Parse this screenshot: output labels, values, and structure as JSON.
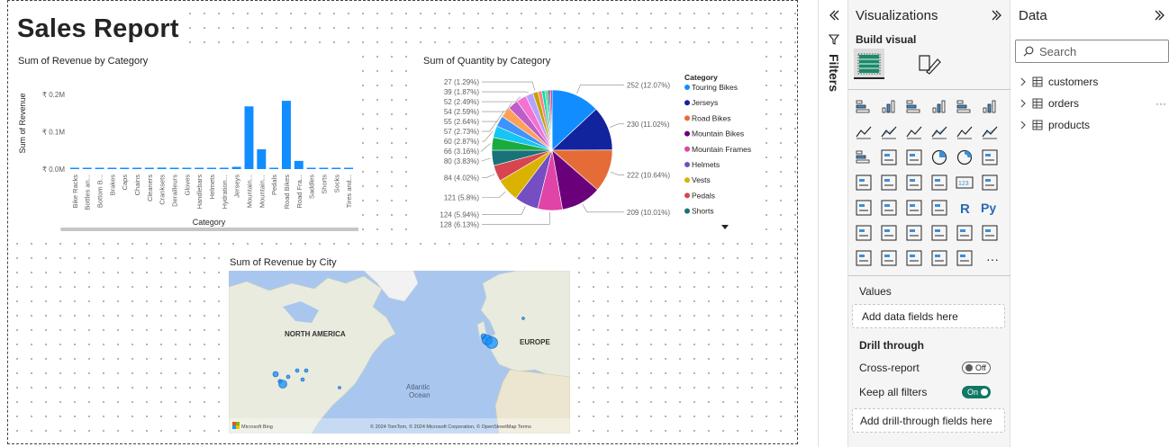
{
  "report": {
    "title": "Sales Report"
  },
  "bar_chart": {
    "title": "Sum of Revenue by Category",
    "ylabel": "Sum of Revenue",
    "xlabel": "Category",
    "yticks": [
      "₹ 0.2M",
      "₹ 0.1M",
      "₹ 0.0M"
    ],
    "color": "#118DFF"
  },
  "pie_chart": {
    "title": "Sum of Quantity by Category",
    "legend_title": "Category"
  },
  "map": {
    "title": "Sum of Revenue by City",
    "labels": {
      "north_america": "NORTH AMERICA",
      "europe": "EUROPE",
      "ocean": "Atlantic\nOcean",
      "ocean1": "Atlantic",
      "ocean2": "Ocean"
    },
    "attribution": "© 2024 TomTom, © 2024 Microsoft Corporation, © OpenStreetMap  Terms",
    "brand": "Microsoft Bing"
  },
  "filters": {
    "label": "Filters"
  },
  "visualizations": {
    "title": "Visualizations",
    "build_visual": "Build visual",
    "values_label": "Values",
    "values_placeholder": "Add data fields here",
    "drill_through": "Drill through",
    "cross_report": "Cross-report",
    "cross_report_state": "Off",
    "keep_all_filters": "Keep all filters",
    "keep_all_filters_state": "On",
    "drill_placeholder": "Add drill-through fields here",
    "more": "···"
  },
  "data_pane": {
    "title": "Data",
    "search_placeholder": "Search",
    "tables": [
      "customers",
      "orders",
      "products"
    ],
    "more": "···"
  },
  "chart_data": [
    {
      "type": "bar",
      "title": "Sum of Revenue by Category",
      "xlabel": "Category",
      "ylabel": "Sum of Revenue",
      "categories": [
        "Bike Racks",
        "Bottles an...",
        "Bottom B...",
        "Brakes",
        "Caps",
        "Chains",
        "Cleaners",
        "Cranksets",
        "Derailleurs",
        "Gloves",
        "Handlebars",
        "Helmets",
        "Hydration...",
        "Jerseys",
        "Mountain...",
        "Mountain...",
        "Pedals",
        "Road Bikes",
        "Road Fra...",
        "Saddles",
        "Shorts",
        "Socks",
        "Tires and..."
      ],
      "values": [
        0.001,
        0.001,
        0.002,
        0.001,
        0.001,
        0.001,
        0.001,
        0.004,
        0.002,
        0.001,
        0.002,
        0.002,
        0.001,
        0.006,
        0.168,
        0.053,
        0.002,
        0.183,
        0.022,
        0.002,
        0.003,
        0.001,
        0.002
      ],
      "ylim": [
        0,
        0.2
      ],
      "unit": "₹ M"
    },
    {
      "type": "pie",
      "title": "Sum of Quantity by Category",
      "legend_title": "Category",
      "slices": [
        {
          "name": "Touring Bikes",
          "value": 252,
          "label": "252 (12.07%)",
          "color": "#118DFF"
        },
        {
          "name": "Jerseys",
          "value": 230,
          "label": "230 (11.02%)",
          "color": "#12239E"
        },
        {
          "name": "Road Bikes",
          "value": 222,
          "label": "222 (10.64%)",
          "color": "#E66C37"
        },
        {
          "name": "Mountain Bikes",
          "value": 209,
          "label": "209 (10.01%)",
          "color": "#6B007B"
        },
        {
          "name": "Mountain Frames",
          "value": 128,
          "label": "128 (6.13%)",
          "color": "#E044A7"
        },
        {
          "name": "Helmets",
          "value": 124,
          "label": "124 (5.94%)",
          "color": "#744EC2"
        },
        {
          "name": "Vests",
          "value": 121,
          "label": "121 (5.8%)",
          "color": "#D9B300"
        },
        {
          "name": "Pedals",
          "value": 84,
          "label": "84 (4.02%)",
          "color": "#D64550"
        },
        {
          "name": "Shorts",
          "value": 80,
          "label": "80 (3.83%)",
          "color": "#197278"
        },
        {
          "name": "",
          "value": 66,
          "label": "66 (3.16%)",
          "color": "#1AAB40"
        },
        {
          "name": "",
          "value": 60,
          "label": "60 (2.87%)",
          "color": "#15C6F4"
        },
        {
          "name": "",
          "value": 57,
          "label": "57 (2.73%)",
          "color": "#4092FF"
        },
        {
          "name": "",
          "value": 55,
          "label": "55 (2.64%)",
          "color": "#FFA058"
        },
        {
          "name": "",
          "value": 54,
          "label": "54 (2.59%)",
          "color": "#BE5DC9"
        },
        {
          "name": "",
          "value": 52,
          "label": "52 (2.49%)",
          "color": "#F472D0"
        },
        {
          "name": "",
          "value": 39,
          "label": "39 (1.87%)",
          "color": "#B5A1FF"
        },
        {
          "name": "",
          "value": 27,
          "label": "27 (1.29%)",
          "color": "#C4A200"
        },
        {
          "name": "",
          "value": 20,
          "label": "",
          "color": "#FF8080"
        },
        {
          "name": "",
          "value": 16,
          "label": "",
          "color": "#00DBBC"
        },
        {
          "name": "",
          "value": 12,
          "label": "",
          "color": "#5BD667"
        },
        {
          "name": "",
          "value": 10,
          "label": "",
          "color": "#0091D5"
        },
        {
          "name": "",
          "value": 8,
          "label": "",
          "color": "#E81123"
        },
        {
          "name": "",
          "value": 7,
          "label": "",
          "color": "#7F00A1"
        }
      ]
    }
  ]
}
